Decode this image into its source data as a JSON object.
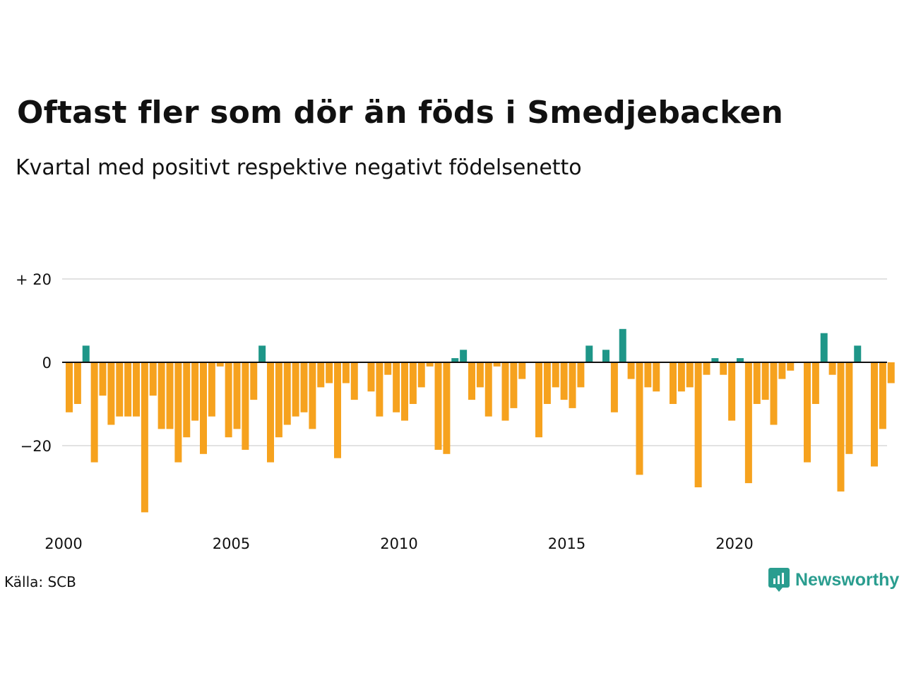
{
  "title": "Oftast fler som dör än föds i Smedjebacken",
  "subtitle": "Kvartal med positivt respektive negativt födelsenetto",
  "source": "Källa: SCB",
  "brand": "Newsworthy",
  "colors": {
    "positive": "#1e9688",
    "negative": "#f6a21e",
    "grid": "#e2e2e2",
    "zero": "#111111"
  },
  "chart_data": {
    "type": "bar",
    "x_tick_labels": [
      "2000",
      "2005",
      "2010",
      "2015",
      "2020"
    ],
    "y_tick_labels": [
      "+ 20",
      "0",
      "−20"
    ],
    "y_ticks": [
      20,
      0,
      -20
    ],
    "ylim": [
      -40,
      25
    ],
    "x_start": "2000-Q1",
    "periods": "quarterly",
    "values": [
      -12,
      -10,
      4,
      -24,
      -8,
      -15,
      -13,
      -13,
      -13,
      -36,
      -8,
      -16,
      -16,
      -24,
      -18,
      -14,
      -22,
      -13,
      -1,
      -18,
      -16,
      -21,
      -9,
      4,
      -24,
      -18,
      -15,
      -13,
      -12,
      -16,
      -6,
      -5,
      -23,
      -5,
      -9,
      0,
      -7,
      -13,
      -3,
      -12,
      -14,
      -10,
      -6,
      -1,
      -21,
      -22,
      1,
      3,
      -9,
      -6,
      -13,
      -1,
      -14,
      -11,
      -4,
      0,
      -18,
      -10,
      -6,
      -9,
      -11,
      -6,
      4,
      0,
      3,
      -12,
      8,
      -4,
      -27,
      -6,
      -7,
      0,
      -10,
      -7,
      -6,
      -30,
      -3,
      1,
      -3,
      -14,
      1,
      -29,
      -10,
      -9,
      -15,
      -4,
      -2,
      0,
      -24,
      -10,
      7,
      -3,
      -31,
      -22,
      4,
      0,
      -25,
      -16,
      -5
    ]
  }
}
